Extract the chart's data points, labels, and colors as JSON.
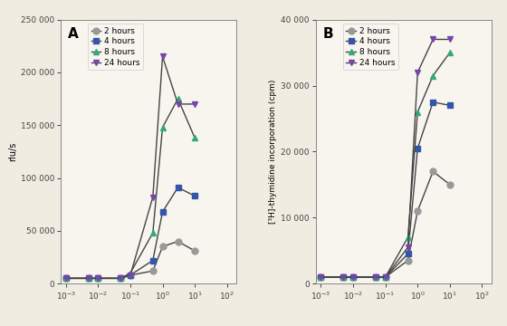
{
  "panel_A": {
    "title": "A",
    "ylabel": "rlu/s",
    "ylim": [
      0,
      250000
    ],
    "yticks": [
      0,
      50000,
      100000,
      150000,
      200000,
      250000
    ],
    "ytick_labels": [
      "0",
      "50 000",
      "100 000",
      "150 000",
      "200 000",
      "250 000"
    ],
    "series": [
      {
        "label": "2 hours",
        "color": "#999999",
        "marker": "o",
        "x": [
          0.001,
          0.005,
          0.01,
          0.05,
          0.1,
          0.5,
          1,
          3,
          10
        ],
        "y": [
          5000,
          5000,
          5000,
          5000,
          8000,
          12000,
          35000,
          40000,
          31000
        ]
      },
      {
        "label": "4 hours",
        "color": "#3355aa",
        "marker": "s",
        "x": [
          0.001,
          0.005,
          0.01,
          0.05,
          0.1,
          0.5,
          1,
          3,
          10
        ],
        "y": [
          5000,
          5000,
          5000,
          5000,
          8000,
          22000,
          68000,
          91000,
          83000
        ]
      },
      {
        "label": "8 hours",
        "color": "#33aa77",
        "marker": "^",
        "x": [
          0.001,
          0.005,
          0.01,
          0.05,
          0.1,
          0.5,
          1,
          3,
          10
        ],
        "y": [
          5000,
          5000,
          5000,
          5000,
          10000,
          48000,
          148000,
          175000,
          138000
        ]
      },
      {
        "label": "24 hours",
        "color": "#7744aa",
        "marker": "v",
        "x": [
          0.001,
          0.005,
          0.01,
          0.05,
          0.1,
          0.5,
          1,
          3,
          10
        ],
        "y": [
          5000,
          5000,
          5000,
          5000,
          8000,
          82000,
          215000,
          170000,
          170000
        ]
      }
    ]
  },
  "panel_B": {
    "title": "B",
    "ylabel": "[³H]-thymidine incorporation (cpm)",
    "ylim": [
      0,
      40000
    ],
    "yticks": [
      0,
      10000,
      20000,
      30000,
      40000
    ],
    "ytick_labels": [
      "0",
      "10 000",
      "20 000",
      "30 000",
      "40 000"
    ],
    "series": [
      {
        "label": "2 hours",
        "color": "#999999",
        "marker": "o",
        "x": [
          0.001,
          0.005,
          0.01,
          0.05,
          0.1,
          0.5,
          1,
          3,
          10
        ],
        "y": [
          1000,
          1000,
          1000,
          1000,
          1000,
          3500,
          11000,
          17000,
          15000
        ]
      },
      {
        "label": "4 hours",
        "color": "#3355aa",
        "marker": "s",
        "x": [
          0.001,
          0.005,
          0.01,
          0.05,
          0.1,
          0.5,
          1,
          3,
          10
        ],
        "y": [
          1000,
          1000,
          1000,
          1000,
          1000,
          4500,
          20500,
          27500,
          27000
        ]
      },
      {
        "label": "8 hours",
        "color": "#33aa77",
        "marker": "^",
        "x": [
          0.001,
          0.005,
          0.01,
          0.05,
          0.1,
          0.5,
          1,
          3,
          10
        ],
        "y": [
          1000,
          1000,
          1000,
          1000,
          1000,
          7000,
          26000,
          31500,
          35000
        ]
      },
      {
        "label": "24 hours",
        "color": "#7744aa",
        "marker": "v",
        "x": [
          0.001,
          0.005,
          0.01,
          0.05,
          0.1,
          0.5,
          1,
          3,
          10
        ],
        "y": [
          1000,
          1000,
          1000,
          1000,
          1000,
          5500,
          32000,
          37000,
          37000
        ]
      }
    ]
  },
  "xlim": [
    0.0007,
    200
  ],
  "xticks": [
    0.001,
    0.01,
    0.1,
    1,
    10,
    100
  ],
  "xtick_labels": [
    "10$^{-3}$",
    "10$^{-2}$",
    "10$^{-1}$",
    "10$^{0}$",
    "10$^{1}$",
    "10$^{2}$"
  ],
  "bg_color": "#f0ece2",
  "plot_bg": "#f8f5ef",
  "line_color": "#444444",
  "marker_size": 5,
  "linewidth": 1.0
}
